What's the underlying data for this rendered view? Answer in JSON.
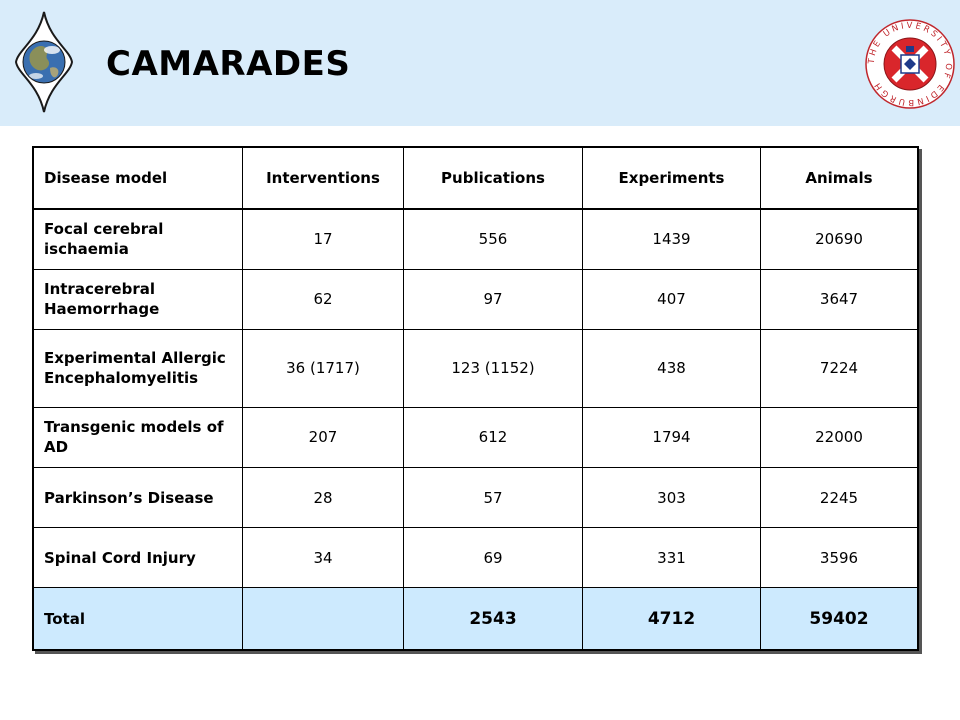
{
  "header": {
    "title": "CAMARADES",
    "seal_text": "THE UNIVERSITY OF EDINBURGH"
  },
  "table": {
    "columns": [
      "Disease model",
      "Interventions",
      "Publications",
      "Experiments",
      "Animals"
    ],
    "rows": [
      {
        "name": "Focal cerebral ischaemia",
        "interventions": "17",
        "publications": "556",
        "experiments": "1439",
        "animals": "20690"
      },
      {
        "name": "Intracerebral Haemorrhage",
        "interventions": "62",
        "publications": "97",
        "experiments": "407",
        "animals": "3647"
      },
      {
        "name": "Experimental Allergic Encephalomyelitis",
        "interventions": "36 (1717)",
        "publications": "123 (1152)",
        "experiments": "438",
        "animals": "7224"
      },
      {
        "name": "Transgenic models of AD",
        "interventions": "207",
        "publications": "612",
        "experiments": "1794",
        "animals": "22000"
      },
      {
        "name": "Parkinson’s Disease",
        "interventions": "28",
        "publications": "57",
        "experiments": "303",
        "animals": "2245"
      },
      {
        "name": "Spinal Cord Injury",
        "interventions": "34",
        "publications": "69",
        "experiments": "331",
        "animals": "3596"
      }
    ],
    "total": {
      "name": "Total",
      "interventions": "",
      "publications": "2543",
      "experiments": "4712",
      "animals": "59402"
    }
  },
  "colors": {
    "header_bg": "#d9ecfa",
    "total_bg": "#cdeafe",
    "seal_red": "#d9262b"
  }
}
